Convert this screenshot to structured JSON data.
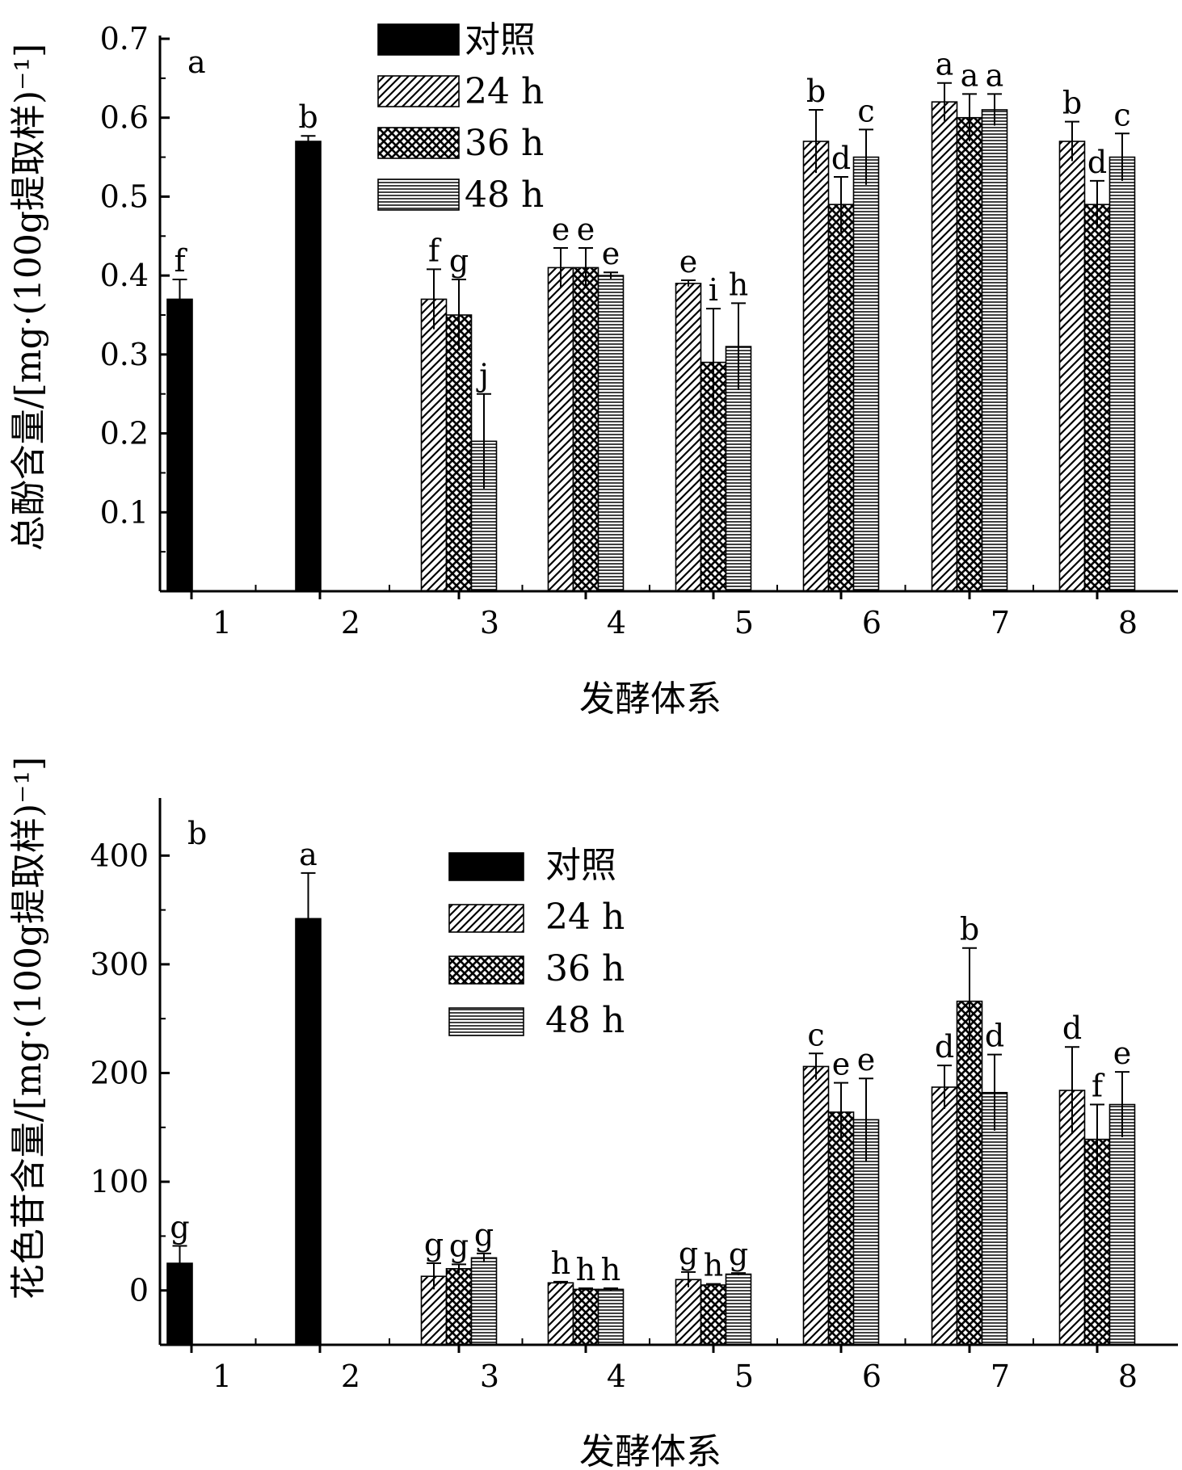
{
  "chart_data": [
    {
      "type": "bar",
      "ylabel": "总酚含量/[mg·(100g提取样)⁻¹]",
      "xlabel": "发酵体系",
      "ylim": [
        0.0,
        0.7
      ],
      "yticks": [
        "0.1",
        "0.2",
        "0.3",
        "0.4",
        "0.5",
        "0.6",
        "0.7"
      ],
      "categories": [
        "1",
        "2",
        "3",
        "4",
        "5",
        "6",
        "7",
        "8"
      ],
      "corner_label": "a",
      "legend": {
        "placement": "top-center",
        "entries": [
          "对照",
          "24 h",
          "36 h",
          "48 h"
        ]
      },
      "series": [
        {
          "name": "对照",
          "values": [
            0.37,
            0.57,
            null,
            null,
            null,
            null,
            null,
            null
          ],
          "errors": [
            0.025,
            0.007,
            null,
            null,
            null,
            null,
            null,
            null
          ],
          "labels": [
            "f",
            "b",
            "",
            "",
            "",
            "",
            "",
            ""
          ]
        },
        {
          "name": "24 h",
          "values": [
            null,
            null,
            0.37,
            0.41,
            0.39,
            0.57,
            0.62,
            0.57
          ],
          "errors": [
            null,
            null,
            0.038,
            0.025,
            0.004,
            0.04,
            0.024,
            0.025
          ],
          "labels": [
            "",
            "",
            "f",
            "e",
            "e",
            "b",
            "a",
            "b"
          ]
        },
        {
          "name": "36 h",
          "values": [
            null,
            null,
            0.35,
            0.41,
            0.29,
            0.49,
            0.6,
            0.49
          ],
          "errors": [
            null,
            null,
            0.045,
            0.025,
            0.068,
            0.035,
            0.03,
            0.03
          ],
          "labels": [
            "",
            "",
            "g",
            "e",
            "i",
            "d",
            "a",
            "d"
          ]
        },
        {
          "name": "48 h",
          "values": [
            null,
            null,
            0.19,
            0.4,
            0.31,
            0.55,
            0.61,
            0.55
          ],
          "errors": [
            null,
            null,
            0.06,
            0.004,
            0.055,
            0.035,
            0.02,
            0.03
          ],
          "labels": [
            "",
            "",
            "j",
            "e",
            "h",
            "c",
            "a",
            "c"
          ]
        }
      ]
    },
    {
      "type": "bar",
      "ylabel": "花色苷含量/[mg·(100g提取样)⁻¹]",
      "xlabel": "发酵体系",
      "ylim": [
        -50,
        450
      ],
      "yticks": [
        "0",
        "100",
        "200",
        "300",
        "400"
      ],
      "categories": [
        "1",
        "2",
        "3",
        "4",
        "5",
        "6",
        "7",
        "8"
      ],
      "corner_label": "b",
      "legend": {
        "placement": "top-center",
        "entries": [
          "对照",
          "24 h",
          "36 h",
          "48 h"
        ]
      },
      "series": [
        {
          "name": "对照",
          "values": [
            25,
            342,
            null,
            null,
            null,
            null,
            null,
            null
          ],
          "errors": [
            16,
            42,
            null,
            null,
            null,
            null,
            null,
            null
          ],
          "labels": [
            "g",
            "a",
            "",
            "",
            "",
            "",
            "",
            ""
          ]
        },
        {
          "name": "24 h",
          "values": [
            null,
            null,
            13,
            7,
            10,
            206,
            187,
            184
          ],
          "errors": [
            null,
            null,
            12,
            1,
            7,
            12,
            20,
            40
          ],
          "labels": [
            "",
            "",
            "g",
            "h",
            "g",
            "c",
            "d",
            "d"
          ]
        },
        {
          "name": "36 h",
          "values": [
            null,
            null,
            20,
            1,
            5,
            164,
            266,
            139
          ],
          "errors": [
            null,
            null,
            4,
            1,
            1,
            27,
            49,
            32
          ],
          "labels": [
            "",
            "",
            "g",
            "h",
            "h",
            "e",
            "b",
            "f"
          ]
        },
        {
          "name": "48 h",
          "values": [
            null,
            null,
            30,
            1,
            15,
            157,
            182,
            171
          ],
          "errors": [
            null,
            null,
            4,
            1,
            1,
            38,
            35,
            30
          ],
          "labels": [
            "",
            "",
            "g",
            "h",
            "g",
            "e",
            "d",
            "e"
          ]
        }
      ]
    }
  ]
}
